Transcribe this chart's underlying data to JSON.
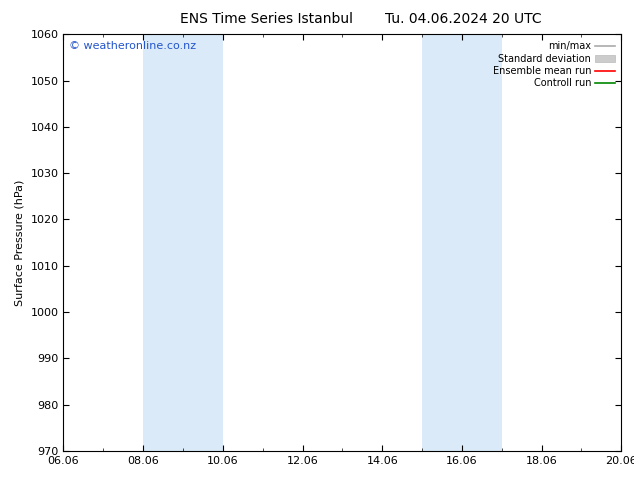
{
  "title_left": "ENS Time Series Istanbul",
  "title_right": "Tu. 04.06.2024 20 UTC",
  "ylabel": "Surface Pressure (hPa)",
  "ylim": [
    970,
    1060
  ],
  "yticks": [
    970,
    980,
    990,
    1000,
    1010,
    1020,
    1030,
    1040,
    1050,
    1060
  ],
  "xlim_start": 0,
  "xlim_end": 14,
  "xtick_labels": [
    "06.06",
    "08.06",
    "10.06",
    "12.06",
    "14.06",
    "16.06",
    "18.06",
    "20.06"
  ],
  "xtick_positions": [
    0,
    2,
    4,
    6,
    8,
    10,
    12,
    14
  ],
  "shaded_bands": [
    {
      "xstart": 2,
      "xend": 4
    },
    {
      "xstart": 9,
      "xend": 11
    }
  ],
  "band_color": "#dbeaf8",
  "watermark": "© weatheronline.co.nz",
  "watermark_color": "#2255cc",
  "legend_items": [
    {
      "label": "min/max",
      "color": "#aaaaaa",
      "lw": 1.2,
      "style": "line"
    },
    {
      "label": "Standard deviation",
      "color": "#cccccc",
      "style": "fill"
    },
    {
      "label": "Ensemble mean run",
      "color": "#ff0000",
      "lw": 1.2,
      "style": "line"
    },
    {
      "label": "Controll run",
      "color": "#008800",
      "lw": 1.2,
      "style": "line"
    }
  ],
  "background_color": "#ffffff",
  "plot_bg_color": "#ffffff",
  "title_fontsize": 10,
  "tick_fontsize": 8,
  "ylabel_fontsize": 8,
  "watermark_fontsize": 8,
  "legend_fontsize": 7
}
